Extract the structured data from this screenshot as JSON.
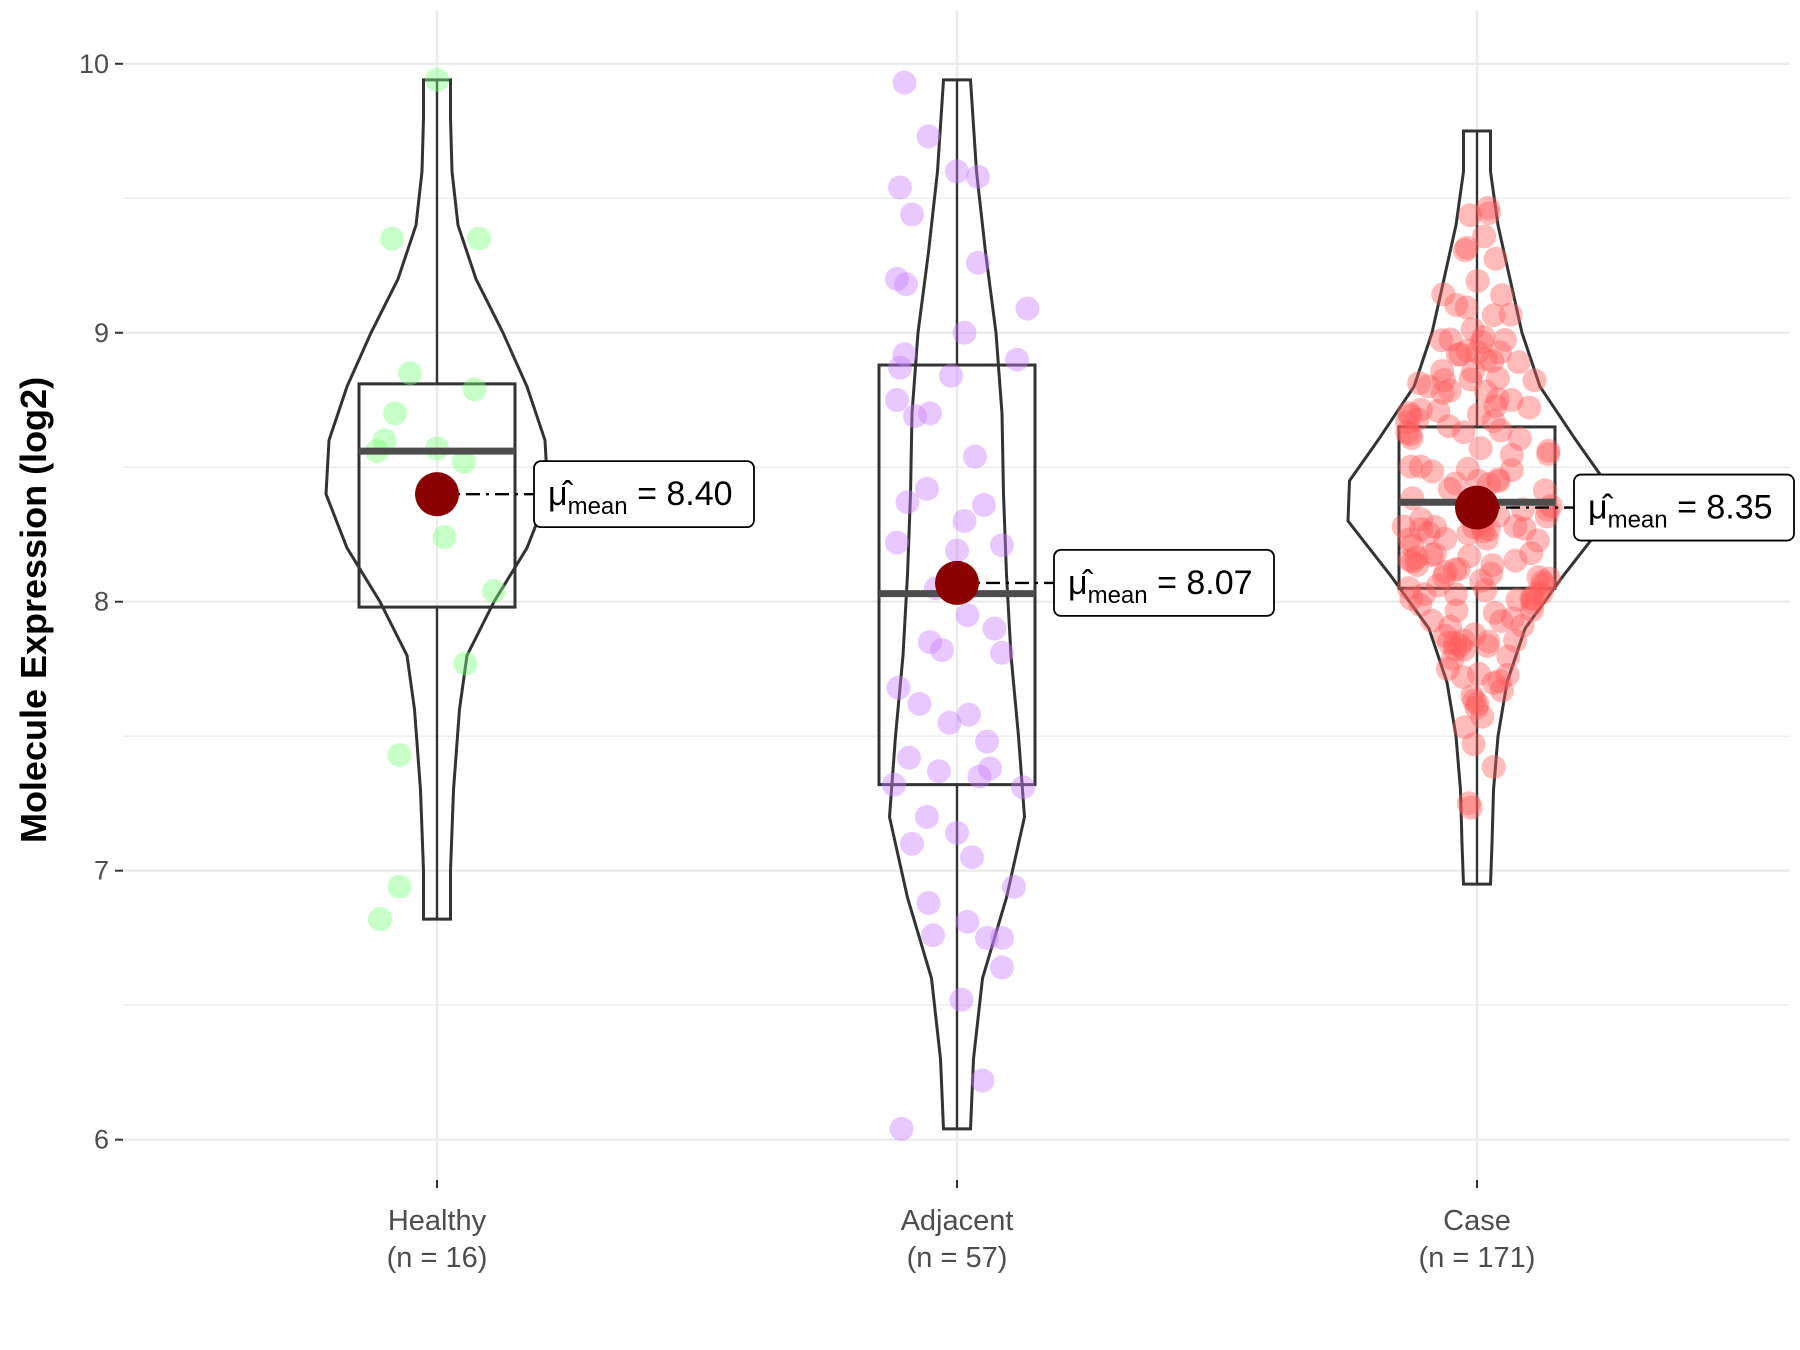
{
  "chart_data": {
    "type": "violin",
    "ylabel": "Molecule Expression (log2)",
    "xlabel": "",
    "ylim": [
      5.85,
      10.2
    ],
    "yticks": [
      6,
      7,
      8,
      9,
      10
    ],
    "mean_symbol": "μ̂",
    "mean_subscript": "mean",
    "groups": [
      {
        "name": "Healthy",
        "n_label": "(n = 16)",
        "color": "#7CFC7C",
        "mean": 8.4,
        "mean_label": "8.40",
        "median": 8.56,
        "q1": 7.98,
        "q3": 8.81,
        "min": 6.82,
        "max": 9.94,
        "violin_widths": [
          [
            6.82,
            0.09
          ],
          [
            7.0,
            0.09
          ],
          [
            7.3,
            0.11
          ],
          [
            7.6,
            0.15
          ],
          [
            7.8,
            0.2
          ],
          [
            8.0,
            0.38
          ],
          [
            8.2,
            0.6
          ],
          [
            8.4,
            0.74
          ],
          [
            8.6,
            0.72
          ],
          [
            8.8,
            0.6
          ],
          [
            9.0,
            0.44
          ],
          [
            9.2,
            0.26
          ],
          [
            9.4,
            0.14
          ],
          [
            9.6,
            0.1
          ],
          [
            9.8,
            0.09
          ],
          [
            9.94,
            0.09
          ]
        ],
        "points": [
          [
            9.94,
            0.0
          ],
          [
            9.35,
            -0.3
          ],
          [
            9.35,
            0.28
          ],
          [
            8.85,
            -0.18
          ],
          [
            8.79,
            0.25
          ],
          [
            8.7,
            -0.28
          ],
          [
            8.6,
            -0.35
          ],
          [
            8.57,
            0.0
          ],
          [
            8.56,
            -0.4
          ],
          [
            8.52,
            0.18
          ],
          [
            8.24,
            0.05
          ],
          [
            8.04,
            0.38
          ],
          [
            7.77,
            0.19
          ],
          [
            7.43,
            -0.25
          ],
          [
            6.94,
            -0.25
          ],
          [
            6.82,
            -0.38
          ]
        ]
      },
      {
        "name": "Adjacent",
        "n_label": "(n = 57)",
        "color": "#C77CFF",
        "mean": 8.07,
        "mean_label": "8.07",
        "median": 8.03,
        "q1": 7.32,
        "q3": 8.88,
        "min": 6.04,
        "max": 9.94,
        "violin_widths": [
          [
            6.04,
            0.09
          ],
          [
            6.3,
            0.11
          ],
          [
            6.6,
            0.17
          ],
          [
            6.9,
            0.33
          ],
          [
            7.2,
            0.45
          ],
          [
            7.5,
            0.41
          ],
          [
            7.8,
            0.36
          ],
          [
            8.1,
            0.33
          ],
          [
            8.4,
            0.31
          ],
          [
            8.7,
            0.3
          ],
          [
            9.0,
            0.26
          ],
          [
            9.3,
            0.19
          ],
          [
            9.6,
            0.13
          ],
          [
            9.94,
            0.09
          ]
        ],
        "points": [
          [
            9.93,
            -0.35
          ],
          [
            9.73,
            -0.19
          ],
          [
            9.6,
            0.0
          ],
          [
            9.58,
            0.14
          ],
          [
            9.54,
            -0.38
          ],
          [
            9.44,
            -0.3
          ],
          [
            9.26,
            0.14
          ],
          [
            9.2,
            -0.4
          ],
          [
            9.18,
            -0.34
          ],
          [
            9.09,
            0.47
          ],
          [
            8.92,
            -0.35
          ],
          [
            8.9,
            0.4
          ],
          [
            8.87,
            -0.38
          ],
          [
            8.84,
            -0.04
          ],
          [
            8.75,
            -0.4
          ],
          [
            8.7,
            -0.18
          ],
          [
            8.54,
            0.12
          ],
          [
            8.42,
            -0.2
          ],
          [
            8.37,
            -0.33
          ],
          [
            8.36,
            0.18
          ],
          [
            8.22,
            -0.4
          ],
          [
            8.21,
            0.3
          ],
          [
            8.19,
            0.0
          ],
          [
            8.05,
            -0.14
          ],
          [
            7.95,
            0.07
          ],
          [
            7.85,
            -0.18
          ],
          [
            7.82,
            -0.1
          ],
          [
            7.81,
            0.3
          ],
          [
            7.68,
            -0.39
          ],
          [
            7.58,
            0.08
          ],
          [
            7.55,
            -0.05
          ],
          [
            7.48,
            0.2
          ],
          [
            7.42,
            -0.32
          ],
          [
            7.38,
            0.22
          ],
          [
            7.37,
            -0.12
          ],
          [
            7.35,
            0.15
          ],
          [
            7.32,
            -0.42
          ],
          [
            7.31,
            0.44
          ],
          [
            7.14,
            0.0
          ],
          [
            7.1,
            -0.3
          ],
          [
            7.05,
            0.1
          ],
          [
            6.94,
            0.38
          ],
          [
            6.88,
            -0.19
          ],
          [
            6.81,
            0.07
          ],
          [
            6.76,
            -0.16
          ],
          [
            6.75,
            0.3
          ],
          [
            6.75,
            0.2
          ],
          [
            6.64,
            0.3
          ],
          [
            6.52,
            0.03
          ],
          [
            6.22,
            0.17
          ],
          [
            6.04,
            -0.37
          ],
          [
            8.69,
            -0.28
          ],
          [
            7.9,
            0.25
          ],
          [
            7.62,
            -0.25
          ],
          [
            9.0,
            0.05
          ],
          [
            8.3,
            0.05
          ],
          [
            7.2,
            -0.2
          ]
        ]
      },
      {
        "name": "Case",
        "n_label": "(n = 171)",
        "color": "#FF5A5A",
        "mean": 8.35,
        "mean_label": "8.35",
        "median": 8.37,
        "q1": 8.05,
        "q3": 8.65,
        "min": 6.95,
        "max": 9.75,
        "violin_widths": [
          [
            6.95,
            0.09
          ],
          [
            7.1,
            0.1
          ],
          [
            7.3,
            0.11
          ],
          [
            7.5,
            0.14
          ],
          [
            7.7,
            0.2
          ],
          [
            7.9,
            0.32
          ],
          [
            8.1,
            0.58
          ],
          [
            8.3,
            0.86
          ],
          [
            8.45,
            0.85
          ],
          [
            8.6,
            0.66
          ],
          [
            8.8,
            0.42
          ],
          [
            9.0,
            0.3
          ],
          [
            9.2,
            0.22
          ],
          [
            9.4,
            0.14
          ],
          [
            9.6,
            0.09
          ],
          [
            9.75,
            0.09
          ]
        ]
      }
    ]
  }
}
